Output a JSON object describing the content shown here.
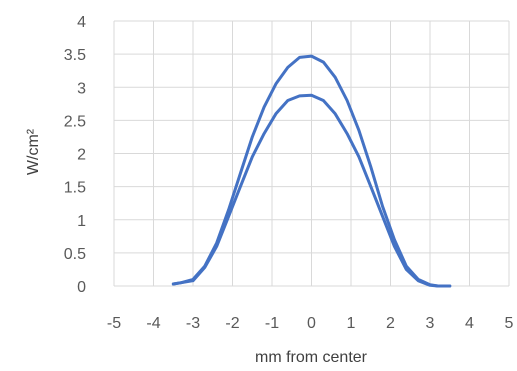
{
  "chart_data": {
    "type": "scatter",
    "title": "",
    "xlabel": "mm from center",
    "ylabel": "W/cm²",
    "xlim": [
      -5,
      5
    ],
    "ylim": [
      0,
      4
    ],
    "xticks": [
      -5,
      -4,
      -3,
      -2,
      -1,
      0,
      1,
      2,
      3,
      4,
      5
    ],
    "yticks": [
      0,
      0.5,
      1,
      1.5,
      2,
      2.5,
      3,
      3.5,
      4
    ],
    "xtick_labels": [
      "-5",
      "-4",
      "-3",
      "-2",
      "-1",
      "0",
      "1",
      "2",
      "3",
      "4",
      "5"
    ],
    "ytick_labels": [
      "0",
      "0.5",
      "1",
      "1.5",
      "2",
      "2.5",
      "3",
      "3.5",
      "4"
    ],
    "grid": true,
    "legend": "none",
    "series": [
      {
        "color": "#4472c4",
        "x": [
          -3.5,
          -3.3,
          -3.0,
          -2.7,
          -2.4,
          -2.1,
          -1.8,
          -1.5,
          -1.2,
          -0.9,
          -0.6,
          -0.3,
          0.0,
          0.3,
          0.6,
          0.9,
          1.2,
          1.5,
          1.8,
          2.1,
          2.4,
          2.7,
          3.0,
          3.2,
          3.5
        ],
        "y": [
          0.03,
          0.05,
          0.1,
          0.3,
          0.65,
          1.15,
          1.7,
          2.25,
          2.7,
          3.05,
          3.3,
          3.45,
          3.47,
          3.38,
          3.15,
          2.8,
          2.35,
          1.8,
          1.2,
          0.7,
          0.3,
          0.1,
          0.02,
          0.0,
          0.0
        ]
      },
      {
        "color": "#4472c4",
        "x": [
          -3.5,
          -3.3,
          -3.0,
          -2.7,
          -2.4,
          -2.1,
          -1.8,
          -1.5,
          -1.2,
          -0.9,
          -0.6,
          -0.3,
          0.0,
          0.3,
          0.6,
          0.9,
          1.2,
          1.5,
          1.8,
          2.1,
          2.4,
          2.7,
          3.0,
          3.2,
          3.5
        ],
        "y": [
          0.03,
          0.05,
          0.08,
          0.28,
          0.6,
          1.05,
          1.5,
          1.95,
          2.3,
          2.6,
          2.8,
          2.87,
          2.88,
          2.8,
          2.6,
          2.3,
          1.95,
          1.5,
          1.05,
          0.6,
          0.25,
          0.08,
          0.01,
          0.0,
          0.0
        ]
      }
    ]
  }
}
